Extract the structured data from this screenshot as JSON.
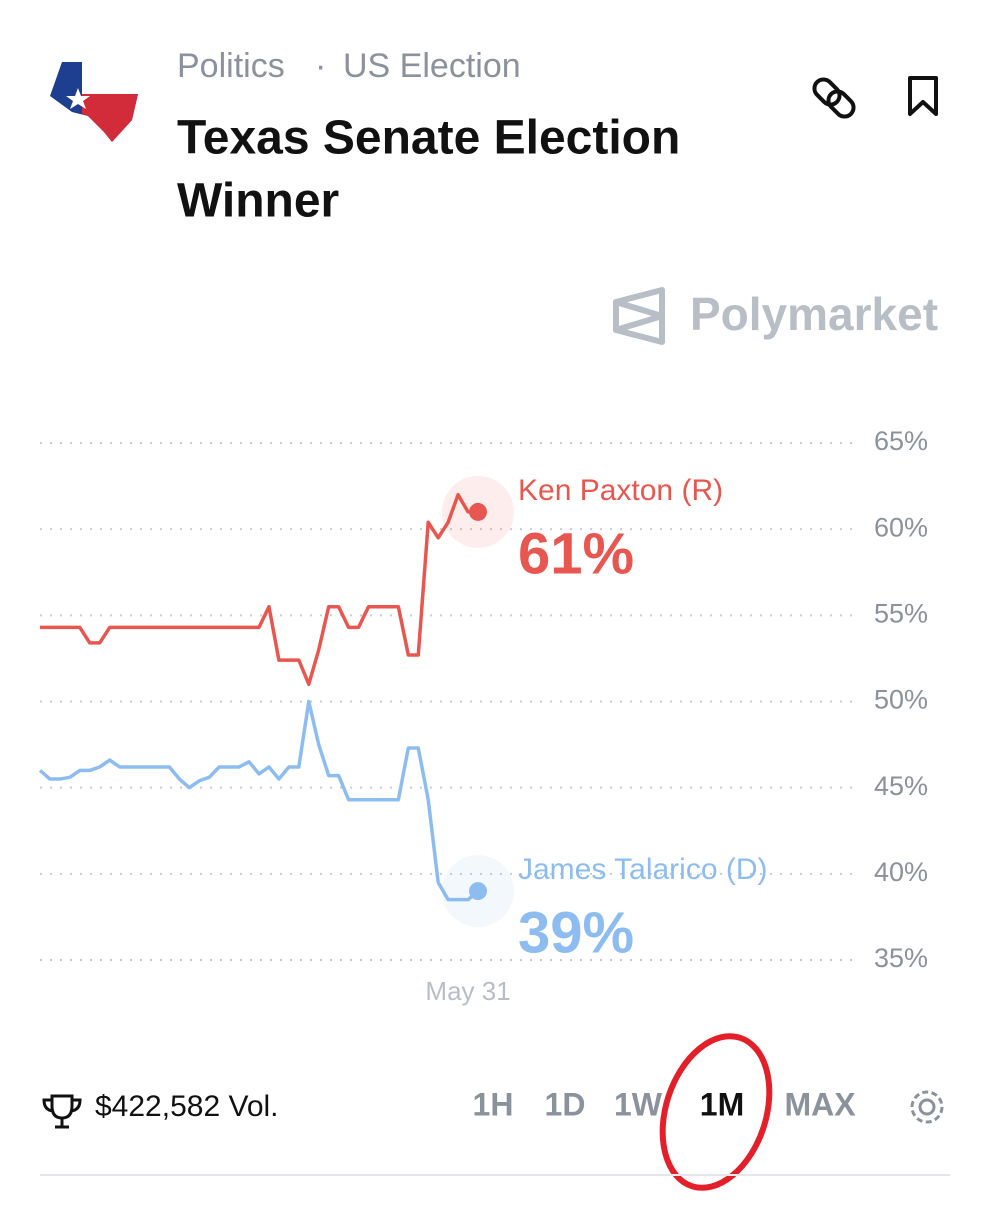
{
  "header": {
    "category": "Politics",
    "separator": "·",
    "subcategory": "US Election",
    "title_line1": "Texas Senate Election",
    "title_line2": "Winner",
    "brand": "Polymarket"
  },
  "chart_data": {
    "type": "line",
    "categories": [
      null,
      null,
      null,
      null,
      null,
      null,
      null,
      null,
      null,
      null,
      null,
      null,
      null,
      null,
      null,
      null,
      null,
      null,
      null,
      null,
      null,
      null,
      null,
      null,
      null,
      null,
      null,
      null,
      null,
      null,
      null,
      null,
      null,
      null,
      null,
      null,
      null,
      null,
      null,
      null,
      null,
      null,
      null,
      "May 31",
      null
    ],
    "series": [
      {
        "name": "Ken Paxton (R)",
        "color": "#e8574f",
        "values": [
          54.3,
          54.3,
          54.3,
          54.3,
          54.3,
          53.4,
          53.4,
          54.3,
          54.3,
          54.3,
          54.3,
          54.3,
          54.3,
          54.3,
          54.3,
          54.3,
          54.3,
          54.3,
          54.3,
          54.3,
          54.3,
          54.3,
          54.3,
          55.5,
          52.4,
          52.4,
          52.4,
          51,
          53,
          55.5,
          55.5,
          54.3,
          54.3,
          55.5,
          55.5,
          55.5,
          55.5,
          52.7,
          52.7,
          60.4,
          59.5,
          60.4,
          62,
          61,
          61
        ],
        "value_labels": [
          null,
          null,
          null,
          null,
          null,
          null,
          null,
          null,
          null,
          null,
          null,
          null,
          null,
          null,
          null,
          null,
          null,
          null,
          null,
          null,
          null,
          null,
          null,
          null,
          null,
          null,
          null,
          null,
          null,
          null,
          null,
          null,
          null,
          null,
          null,
          null,
          null,
          null,
          null,
          null,
          null,
          null,
          null,
          null,
          "61%"
        ]
      },
      {
        "name": "James Talarico (D)",
        "color": "#8dbdf0",
        "values": [
          46,
          45.5,
          45.5,
          45.6,
          46,
          46,
          46.2,
          46.6,
          46.2,
          46.2,
          46.2,
          46.2,
          46.2,
          46.2,
          45.5,
          45,
          45.4,
          45.6,
          46.2,
          46.2,
          46.2,
          46.5,
          45.8,
          46.2,
          45.5,
          46.2,
          46.2,
          50,
          47.5,
          45.7,
          45.7,
          44.3,
          44.3,
          44.3,
          44.3,
          44.3,
          44.3,
          47.3,
          47.3,
          44.3,
          39.5,
          38.5,
          38.5,
          38.5,
          39
        ],
        "value_labels": [
          null,
          null,
          null,
          null,
          null,
          null,
          null,
          null,
          null,
          null,
          null,
          null,
          null,
          null,
          null,
          null,
          null,
          null,
          null,
          null,
          null,
          null,
          null,
          null,
          null,
          null,
          null,
          null,
          null,
          null,
          null,
          null,
          null,
          null,
          null,
          null,
          null,
          null,
          null,
          null,
          null,
          null,
          null,
          null,
          "39%"
        ]
      }
    ],
    "ylim": [
      35,
      65
    ],
    "yticks": [
      {
        "value": 65,
        "label": "65%"
      },
      {
        "value": 60,
        "label": "60%"
      },
      {
        "value": 55,
        "label": "55%"
      },
      {
        "value": 50,
        "label": "50%"
      },
      {
        "value": 45,
        "label": "45%"
      },
      {
        "value": 40,
        "label": "40%"
      },
      {
        "value": 35,
        "label": "35%"
      }
    ],
    "grid": true
  },
  "footer": {
    "volume": "$422,582 Vol.",
    "ranges": [
      "1H",
      "1D",
      "1W",
      "1M",
      "MAX"
    ]
  }
}
